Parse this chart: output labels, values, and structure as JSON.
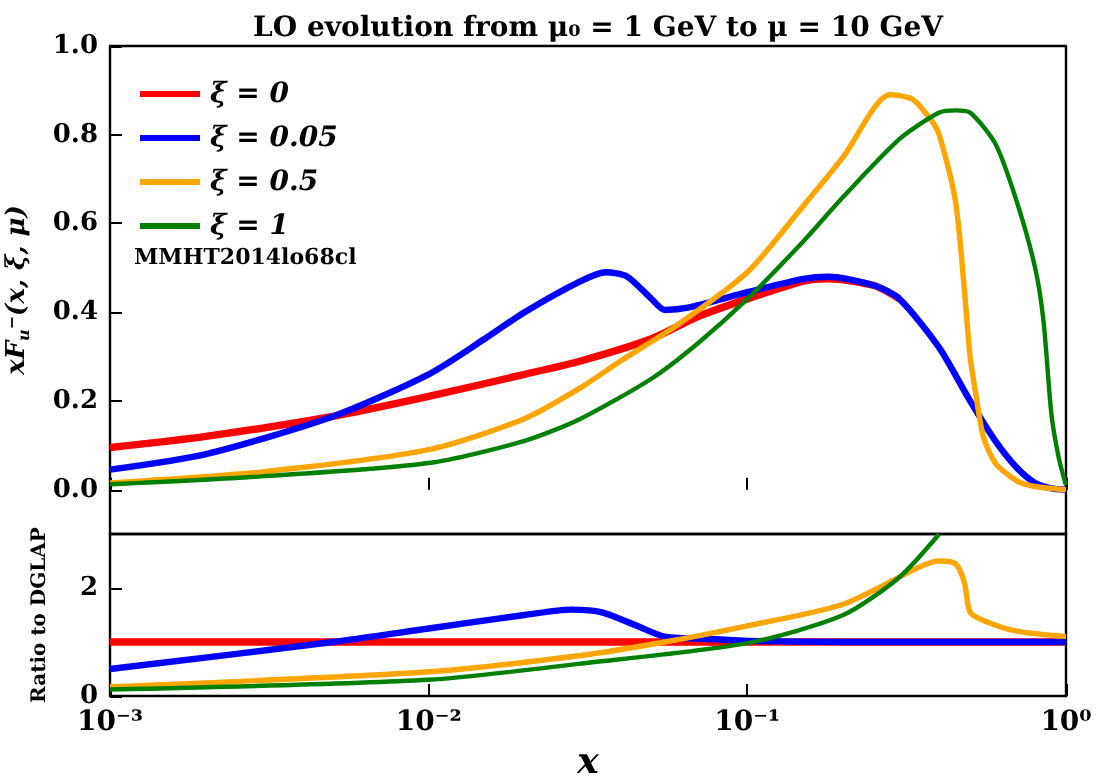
{
  "chart_data": [
    {
      "type": "line",
      "title": "LO evolution from μ₀ = 1 GeV to μ = 10 GeV",
      "ylabel": "xF$_{u}$$^{−}$(x, ξ, μ)",
      "log": "x",
      "xlim": [
        0.001,
        1
      ],
      "ylim": [
        -0.1,
        1.0
      ],
      "xticks": [
        0.001,
        0.01,
        0.1,
        1
      ],
      "yticks": [
        {
          "value": 0,
          "label": "0.0"
        },
        0.2,
        0.4,
        0.6,
        0.8,
        {
          "value": 1,
          "label": "1.0"
        }
      ],
      "tick_labels": "y",
      "grid": false,
      "legend": "top left",
      "annotations": [
        "MMHT2014lo68cl"
      ],
      "series": [
        {
          "name": "ξ = 0",
          "color": "#ff0000",
          "x": [
            0.001,
            0.002,
            0.005,
            0.01,
            0.02,
            0.03,
            0.05,
            0.07,
            0.1,
            0.15,
            0.18,
            0.25,
            0.3
          ],
          "values": [
            0.095,
            0.12,
            0.165,
            0.21,
            0.26,
            0.29,
            0.34,
            0.39,
            0.43,
            0.47,
            0.475,
            0.46,
            0.43
          ]
        },
        {
          "name": "ξ = 0.05",
          "color": "#0000ff",
          "x": [
            0.001,
            0.002,
            0.005,
            0.01,
            0.015,
            0.02,
            0.03,
            0.036,
            0.042,
            0.05,
            0.055,
            0.065,
            0.1,
            0.15,
            0.18,
            0.25,
            0.3,
            0.4,
            0.5,
            0.6,
            0.7,
            0.8,
            0.9,
            1
          ],
          "values": [
            0.045,
            0.08,
            0.165,
            0.26,
            0.34,
            0.4,
            0.47,
            0.49,
            0.48,
            0.43,
            0.405,
            0.41,
            0.445,
            0.475,
            0.48,
            0.46,
            0.43,
            0.32,
            0.2,
            0.11,
            0.05,
            0.015,
            0.003,
            0.0
          ]
        },
        {
          "name": "ξ = 0.5",
          "color": "#ffa500",
          "x": [
            0.001,
            0.003,
            0.01,
            0.02,
            0.03,
            0.04,
            0.06,
            0.1,
            0.15,
            0.2,
            0.28,
            0.33,
            0.38,
            0.4,
            0.45,
            0.48,
            0.5,
            0.52,
            0.55,
            0.6,
            0.7,
            0.8,
            1
          ],
          "values": [
            0.015,
            0.04,
            0.09,
            0.16,
            0.23,
            0.29,
            0.37,
            0.49,
            0.64,
            0.75,
            0.89,
            0.88,
            0.83,
            0.8,
            0.65,
            0.45,
            0.3,
            0.22,
            0.12,
            0.06,
            0.02,
            0.007,
            0.0
          ]
        },
        {
          "name": "ξ = 1",
          "color": "#008000",
          "x": [
            0.001,
            0.003,
            0.01,
            0.02,
            0.03,
            0.05,
            0.07,
            0.1,
            0.15,
            0.2,
            0.3,
            0.4,
            0.45,
            0.5,
            0.6,
            0.7,
            0.8,
            0.85,
            0.9,
            0.95,
            1
          ],
          "values": [
            0.012,
            0.03,
            0.06,
            0.11,
            0.16,
            0.25,
            0.33,
            0.43,
            0.56,
            0.66,
            0.79,
            0.85,
            0.855,
            0.85,
            0.78,
            0.65,
            0.5,
            0.38,
            0.17,
            0.07,
            0.01
          ]
        }
      ]
    },
    {
      "type": "line",
      "xlabel": "x",
      "ylabel": "Ratio to DGLAP",
      "log": "x",
      "xlim": [
        0.001,
        1
      ],
      "ylim": [
        0,
        3
      ],
      "xticks": [
        {
          "value": 0.001,
          "label": "10⁻³"
        },
        {
          "value": 0.01,
          "label": "10⁻²"
        },
        {
          "value": 0.1,
          "label": "10⁻¹"
        },
        {
          "value": 1,
          "label": "10⁰"
        }
      ],
      "yticks": [
        0,
        2
      ],
      "grid": false,
      "series": [
        {
          "color": "#ff0000",
          "x": [
            0.001,
            1
          ],
          "values": [
            1,
            1
          ]
        },
        {
          "color": "#0000ff",
          "x": [
            0.001,
            0.005,
            0.01,
            0.02,
            0.028,
            0.035,
            0.045,
            0.055,
            0.08,
            0.1,
            0.2,
            1
          ],
          "values": [
            0.5,
            1.0,
            1.25,
            1.5,
            1.6,
            1.55,
            1.3,
            1.1,
            1.05,
            1.02,
            1.0,
            1.0
          ]
        },
        {
          "color": "#ffa500",
          "x": [
            0.001,
            0.01,
            0.03,
            0.055,
            0.1,
            0.2,
            0.35,
            0.4,
            0.45,
            0.48,
            0.5,
            0.55,
            0.7,
            1
          ],
          "values": [
            0.17,
            0.45,
            0.75,
            1.0,
            1.3,
            1.7,
            2.4,
            2.5,
            2.45,
            2.1,
            1.55,
            1.4,
            1.2,
            1.1
          ]
        },
        {
          "color": "#008000",
          "x": [
            0.001,
            0.01,
            0.03,
            0.1,
            0.2,
            0.3,
            0.4
          ],
          "values": [
            0.12,
            0.3,
            0.6,
            0.98,
            1.5,
            2.2,
            3.0
          ]
        }
      ]
    }
  ]
}
